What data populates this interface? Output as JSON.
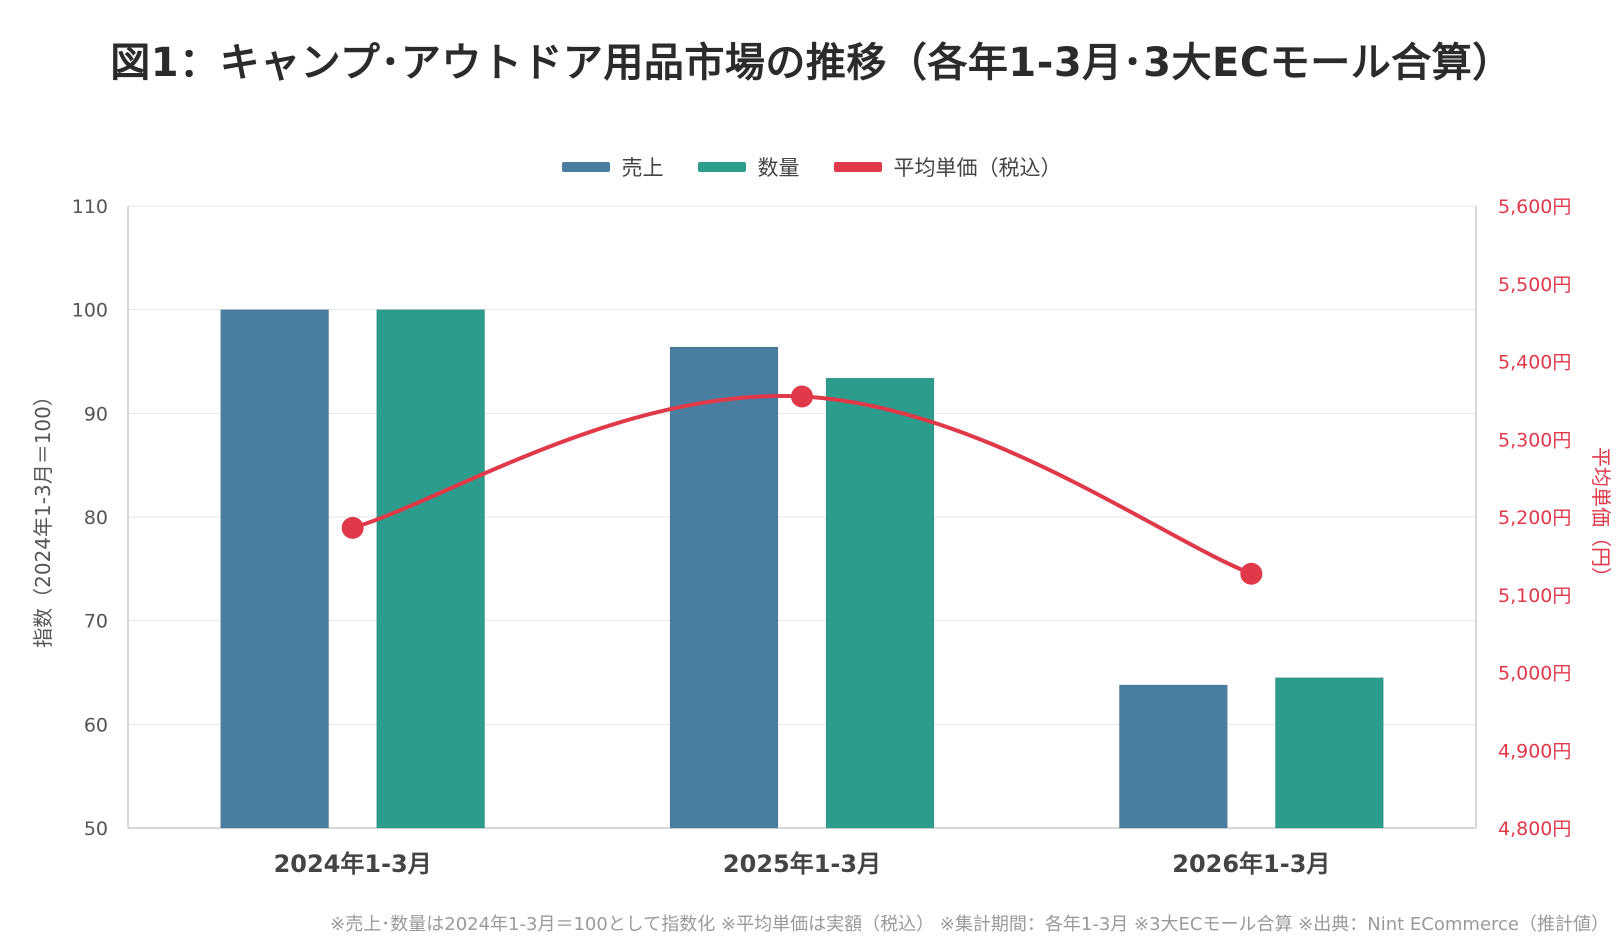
{
  "title": "図1：キャンプ･アウトドア用品市場の推移（各年1-3月･3大ECモール合算）",
  "footnote": "※売上･数量は2024年1-3月＝100として指数化 ※平均単価は実額（税込） ※集計期間：各年1-3月 ※3大ECモール合算 ※出典：Nint ECommerce（推計値）",
  "colors": {
    "sales": "#4a7ea0",
    "quantity": "#2c9c8c",
    "avg_price": "#e0394a"
  },
  "chart_data": {
    "type": "bar",
    "categories": [
      "2024年1-3月",
      "2025年1-3月",
      "2026年1-3月"
    ],
    "series": [
      {
        "name": "売上",
        "kind": "bar",
        "axis": "left",
        "values": [
          100.0,
          96.4,
          63.8
        ]
      },
      {
        "name": "数量",
        "kind": "bar",
        "axis": "left",
        "values": [
          100.0,
          93.4,
          64.5
        ]
      },
      {
        "name": "平均単価（税込）",
        "kind": "line",
        "axis": "right",
        "values": [
          5186,
          5355,
          5127
        ]
      }
    ],
    "y_left": {
      "label": "指数（2024年1-3月＝100）",
      "range": [
        50,
        110
      ],
      "ticks": [
        50,
        60,
        70,
        80,
        90,
        100,
        110
      ]
    },
    "y_right": {
      "label": "平均単価（円）",
      "range": [
        4800,
        5600
      ],
      "ticks": [
        "4,800円",
        "4,900円",
        "5,000円",
        "5,100円",
        "5,200円",
        "5,300円",
        "5,400円",
        "5,500円",
        "5,600円"
      ]
    },
    "legend": "top-center",
    "grid": true
  }
}
